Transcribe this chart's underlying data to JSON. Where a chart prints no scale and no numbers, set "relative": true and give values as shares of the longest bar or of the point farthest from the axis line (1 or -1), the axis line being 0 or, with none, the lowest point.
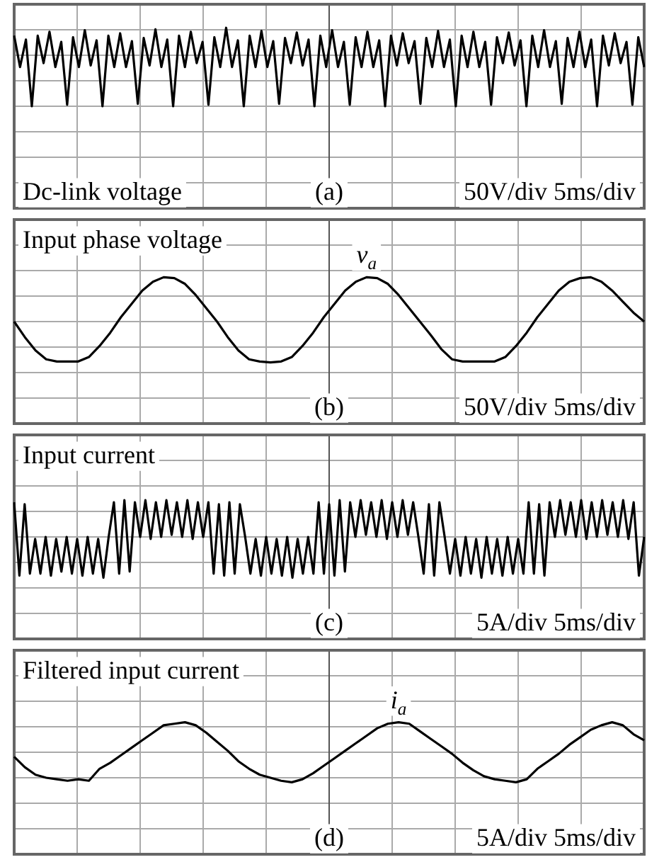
{
  "chart_data": [
    {
      "type": "line",
      "title": "Dc-link voltage",
      "annotations": [
        "(a)",
        "50V/div 5ms/div"
      ],
      "relative": true,
      "grid": true,
      "marker": "none",
      "categories": [
        null,
        null,
        null,
        null,
        null,
        null,
        null,
        null,
        null,
        null,
        null,
        null,
        null,
        null,
        null,
        null,
        null,
        null,
        null,
        null,
        null,
        null,
        null,
        null,
        null,
        null,
        null,
        null,
        null,
        null,
        null,
        null,
        null,
        null,
        null,
        null,
        null,
        null,
        null,
        null,
        null,
        null,
        null,
        null,
        null,
        null,
        null,
        null,
        null,
        null,
        null,
        null,
        null,
        null,
        null,
        null,
        null,
        null,
        null,
        null,
        null,
        null,
        null,
        null,
        null,
        null,
        null,
        null,
        null,
        null,
        null,
        null,
        null,
        null,
        null,
        null,
        null,
        null,
        null,
        null,
        null,
        null,
        null,
        null,
        null,
        null,
        null,
        null,
        null,
        null,
        null,
        null,
        null,
        null,
        null,
        null,
        null,
        null,
        null,
        null,
        null,
        null,
        null,
        null,
        null,
        null,
        null,
        null
      ],
      "series": [
        {
          "color": "#000000",
          "values": [
            0.9,
            0.5,
            0.85,
            0,
            0.9,
            0.55,
            0.95,
            0.5,
            0.82,
            0.02,
            0.88,
            0.5,
            0.97,
            0.52,
            0.84,
            0,
            0.9,
            0.5,
            0.93,
            0.5,
            0.83,
            0.03,
            0.87,
            0.52,
            0.98,
            0.5,
            0.85,
            0,
            0.9,
            0.5,
            0.95,
            0.55,
            0.82,
            0.02,
            0.88,
            0.5,
            1,
            0.5,
            0.84,
            0,
            0.9,
            0.5,
            0.96,
            0.5,
            0.83,
            0.03,
            0.87,
            0.55,
            0.94,
            0.52,
            0.85,
            0,
            0.9,
            0.5,
            0.97,
            0.5,
            0.82,
            0.02,
            0.88,
            0.5,
            0.95,
            0.5,
            0.84,
            0,
            0.9,
            0.52,
            0.93,
            0.55,
            0.83,
            0.03,
            0.87,
            0.5,
            0.96,
            0.5,
            0.85,
            0,
            0.9,
            0.5,
            0.95,
            0.5,
            0.82,
            0.02,
            0.88,
            0.55,
            0.94,
            0.52,
            0.84,
            0,
            0.9,
            0.5,
            0.97,
            0.5,
            0.83,
            0.03,
            0.87,
            0.5,
            0.95,
            0.5,
            0.85,
            0,
            0.9,
            0.52,
            0.93,
            0.55,
            0.82,
            0.02,
            0.88,
            0.5
          ]
        }
      ]
    },
    {
      "type": "line",
      "title": "Input phase voltage",
      "annotations": [
        {
          "text": "v$_{a}$",
          "y": 1
        },
        "(b)",
        "50V/div 5ms/div"
      ],
      "relative": true,
      "grid": true,
      "marker": "none",
      "categories": [
        null,
        null,
        null,
        null,
        null,
        null,
        null,
        null,
        null,
        null,
        null,
        null,
        null,
        null,
        null,
        null,
        null,
        null,
        null,
        null,
        null,
        null,
        null,
        null,
        null,
        null,
        null,
        null,
        null,
        null,
        null,
        null,
        null,
        null,
        null,
        null,
        null,
        null,
        null,
        null,
        null,
        null,
        null,
        null,
        null,
        null,
        null,
        null,
        null,
        null,
        null,
        null,
        null,
        null,
        null,
        null,
        null,
        null,
        null,
        null
      ],
      "series": [
        {
          "color": "#000000",
          "values": [
            0,
            -0.35,
            -0.65,
            -0.85,
            -0.9,
            -0.9,
            -0.9,
            -0.8,
            -0.55,
            -0.25,
            0.1,
            0.4,
            0.7,
            0.9,
            1,
            0.98,
            0.85,
            0.6,
            0.3,
            0,
            -0.35,
            -0.65,
            -0.85,
            -0.9,
            -0.92,
            -0.9,
            -0.8,
            -0.55,
            -0.25,
            0.1,
            0.4,
            0.7,
            0.9,
            1,
            0.98,
            0.85,
            0.6,
            0.3,
            0,
            -0.3,
            -0.62,
            -0.85,
            -0.9,
            -0.9,
            -0.9,
            -0.9,
            -0.8,
            -0.55,
            -0.25,
            0.1,
            0.4,
            0.7,
            0.9,
            0.98,
            1,
            0.9,
            0.7,
            0.45,
            0.2,
            0
          ]
        }
      ]
    },
    {
      "type": "line",
      "title": "Input current",
      "annotations": [
        "(c)",
        "5A/div 5ms/div"
      ],
      "relative": true,
      "grid": true,
      "marker": "none",
      "categories": [
        null,
        null,
        null,
        null,
        null,
        null,
        null,
        null,
        null,
        null,
        null,
        null,
        null,
        null,
        null,
        null,
        null,
        null,
        null,
        null,
        null,
        null,
        null,
        null,
        null,
        null,
        null,
        null,
        null,
        null,
        null,
        null,
        null,
        null,
        null,
        null,
        null,
        null,
        null,
        null,
        null,
        null,
        null,
        null,
        null,
        null,
        null,
        null,
        null,
        null,
        null,
        null,
        null,
        null,
        null,
        null,
        null,
        null,
        null,
        null,
        null,
        null,
        null,
        null,
        null,
        null,
        null,
        null,
        null,
        null,
        null,
        null,
        null,
        null,
        null,
        null,
        null,
        null,
        null,
        null,
        null,
        null,
        null,
        null,
        null,
        null,
        null,
        null,
        null,
        null,
        null,
        null,
        null,
        null,
        null,
        null,
        null,
        null,
        null,
        null,
        null,
        null,
        null,
        null,
        null,
        null,
        null,
        null,
        null,
        null,
        null,
        null,
        null,
        null,
        null,
        null,
        null,
        null,
        null,
        null,
        null
      ],
      "series": [
        {
          "color": "#000000",
          "values": [
            0.85,
            -0.95,
            0.8,
            -0.9,
            -0.05,
            -0.9,
            0,
            -0.95,
            -0.05,
            -0.85,
            0,
            -0.9,
            -0.05,
            -0.95,
            0,
            -0.9,
            -0.05,
            -1,
            0,
            0.85,
            -0.9,
            0.9,
            -0.85,
            0.85,
            0,
            0.9,
            -0.05,
            0.85,
            0,
            0.9,
            0.05,
            0.85,
            0,
            0.9,
            -0.05,
            0.85,
            0,
            0.85,
            -0.9,
            0.8,
            -0.95,
            0.85,
            -0.9,
            0.8,
            0,
            -0.9,
            -0.05,
            -0.95,
            0,
            -0.9,
            -0.05,
            -0.95,
            0,
            -1,
            -0.05,
            -0.9,
            0,
            -0.9,
            0.85,
            -0.9,
            0.8,
            -0.95,
            0.9,
            -0.85,
            0.85,
            0,
            0.9,
            0.05,
            0.85,
            0,
            0.9,
            -0.05,
            0.85,
            0,
            0.9,
            0.05,
            0.85,
            0,
            -0.9,
            0.8,
            -0.95,
            0.85,
            0,
            -0.9,
            -0.05,
            -0.95,
            0,
            -0.9,
            -0.05,
            -1,
            0,
            -0.9,
            -0.05,
            -0.95,
            0,
            -0.9,
            -0.05,
            -0.9,
            0.85,
            -0.9,
            0.8,
            -0.95,
            0.85,
            0,
            0.9,
            0.05,
            0.85,
            0,
            0.9,
            -0.05,
            0.85,
            0,
            0.9,
            0.05,
            0.85,
            0,
            0.9,
            -0.05,
            0.85,
            -0.95,
            0
          ]
        }
      ]
    },
    {
      "type": "line",
      "title": "Filtered input current",
      "annotations": [
        {
          "text": "i$_{a}$",
          "y": 1
        },
        "(d)",
        "5A/div 5ms/div"
      ],
      "relative": true,
      "grid": true,
      "marker": "none",
      "categories": [
        null,
        null,
        null,
        null,
        null,
        null,
        null,
        null,
        null,
        null,
        null,
        null,
        null,
        null,
        null,
        null,
        null,
        null,
        null,
        null,
        null,
        null,
        null,
        null,
        null,
        null,
        null,
        null,
        null,
        null,
        null,
        null,
        null,
        null,
        null,
        null,
        null,
        null,
        null,
        null,
        null,
        null,
        null,
        null,
        null,
        null,
        null,
        null,
        null,
        null,
        null,
        null,
        null,
        null,
        null,
        null,
        null,
        null,
        null,
        null
      ],
      "series": [
        {
          "color": "#000000",
          "values": [
            -0.15,
            -0.5,
            -0.75,
            -0.85,
            -0.9,
            -0.95,
            -0.9,
            -0.95,
            -0.55,
            -0.35,
            -0.1,
            0.15,
            0.4,
            0.65,
            0.9,
            0.95,
            1,
            0.9,
            0.65,
            0.35,
            0.05,
            -0.3,
            -0.55,
            -0.75,
            -0.85,
            -0.95,
            -1,
            -0.9,
            -0.7,
            -0.45,
            -0.2,
            0.05,
            0.3,
            0.55,
            0.8,
            0.95,
            1,
            0.95,
            0.7,
            0.45,
            0.2,
            -0.05,
            -0.35,
            -0.6,
            -0.8,
            -0.9,
            -0.95,
            -1,
            -0.9,
            -0.55,
            -0.3,
            -0.05,
            0.25,
            0.5,
            0.75,
            0.9,
            1,
            0.9,
            0.6,
            0.4
          ]
        }
      ]
    }
  ]
}
